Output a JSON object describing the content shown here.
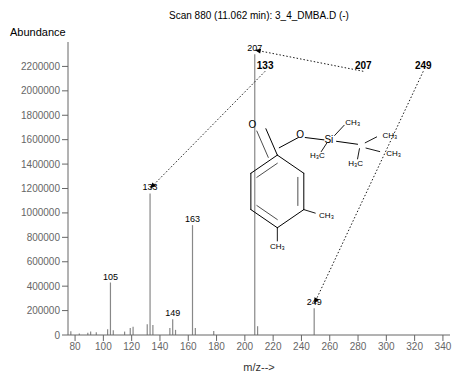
{
  "chart_data": {
    "type": "stem",
    "title": "Scan 880 (11.062 min): 3_4_DMBA.D (-)",
    "xlabel": "m/z-->",
    "ylabel": "Abundance",
    "x": [
      77,
      83,
      89,
      91,
      95,
      103,
      105,
      107,
      115,
      119,
      121,
      131,
      133,
      135,
      147,
      149,
      151,
      163,
      165,
      178,
      207,
      209,
      249
    ],
    "values": [
      30000,
      12000,
      18000,
      28000,
      22000,
      48000,
      430000,
      38000,
      28000,
      58000,
      68000,
      88000,
      1160000,
      82000,
      58000,
      130000,
      42000,
      900000,
      58000,
      32000,
      2300000,
      72000,
      220000
    ],
    "color": "#888888",
    "xlim": [
      75,
      345
    ],
    "ylim": [
      0,
      2400000
    ],
    "xticks": [
      80,
      100,
      120,
      140,
      160,
      180,
      200,
      220,
      240,
      260,
      280,
      300,
      320,
      340
    ],
    "yticks": [
      0,
      200000,
      400000,
      600000,
      800000,
      1000000,
      1200000,
      1400000,
      1600000,
      1800000,
      2000000,
      2200000
    ],
    "annotations": [
      {
        "text": "105",
        "x": 105,
        "y": 430000
      },
      {
        "text": "133",
        "x": 133,
        "y": 1160000
      },
      {
        "text": "149",
        "x": 149,
        "y": 130000
      },
      {
        "text": "163",
        "x": 163,
        "y": 900000
      },
      {
        "text": "207",
        "x": 207,
        "y": 2300000
      },
      {
        "text": "249",
        "x": 249,
        "y": 220000
      }
    ],
    "arrow_annotations": [
      {
        "text": "133",
        "x": 133,
        "y": 1200000
      },
      {
        "text": "207",
        "x": 207,
        "y": 2335000
      },
      {
        "text": "249",
        "x": 249,
        "y": 255000
      }
    ],
    "structure_text": [
      "O",
      "O",
      "Si",
      "CH₃",
      "H₃C",
      "H₃C",
      "CH₃",
      "CH₃",
      "CH₃",
      "CH₃"
    ]
  }
}
